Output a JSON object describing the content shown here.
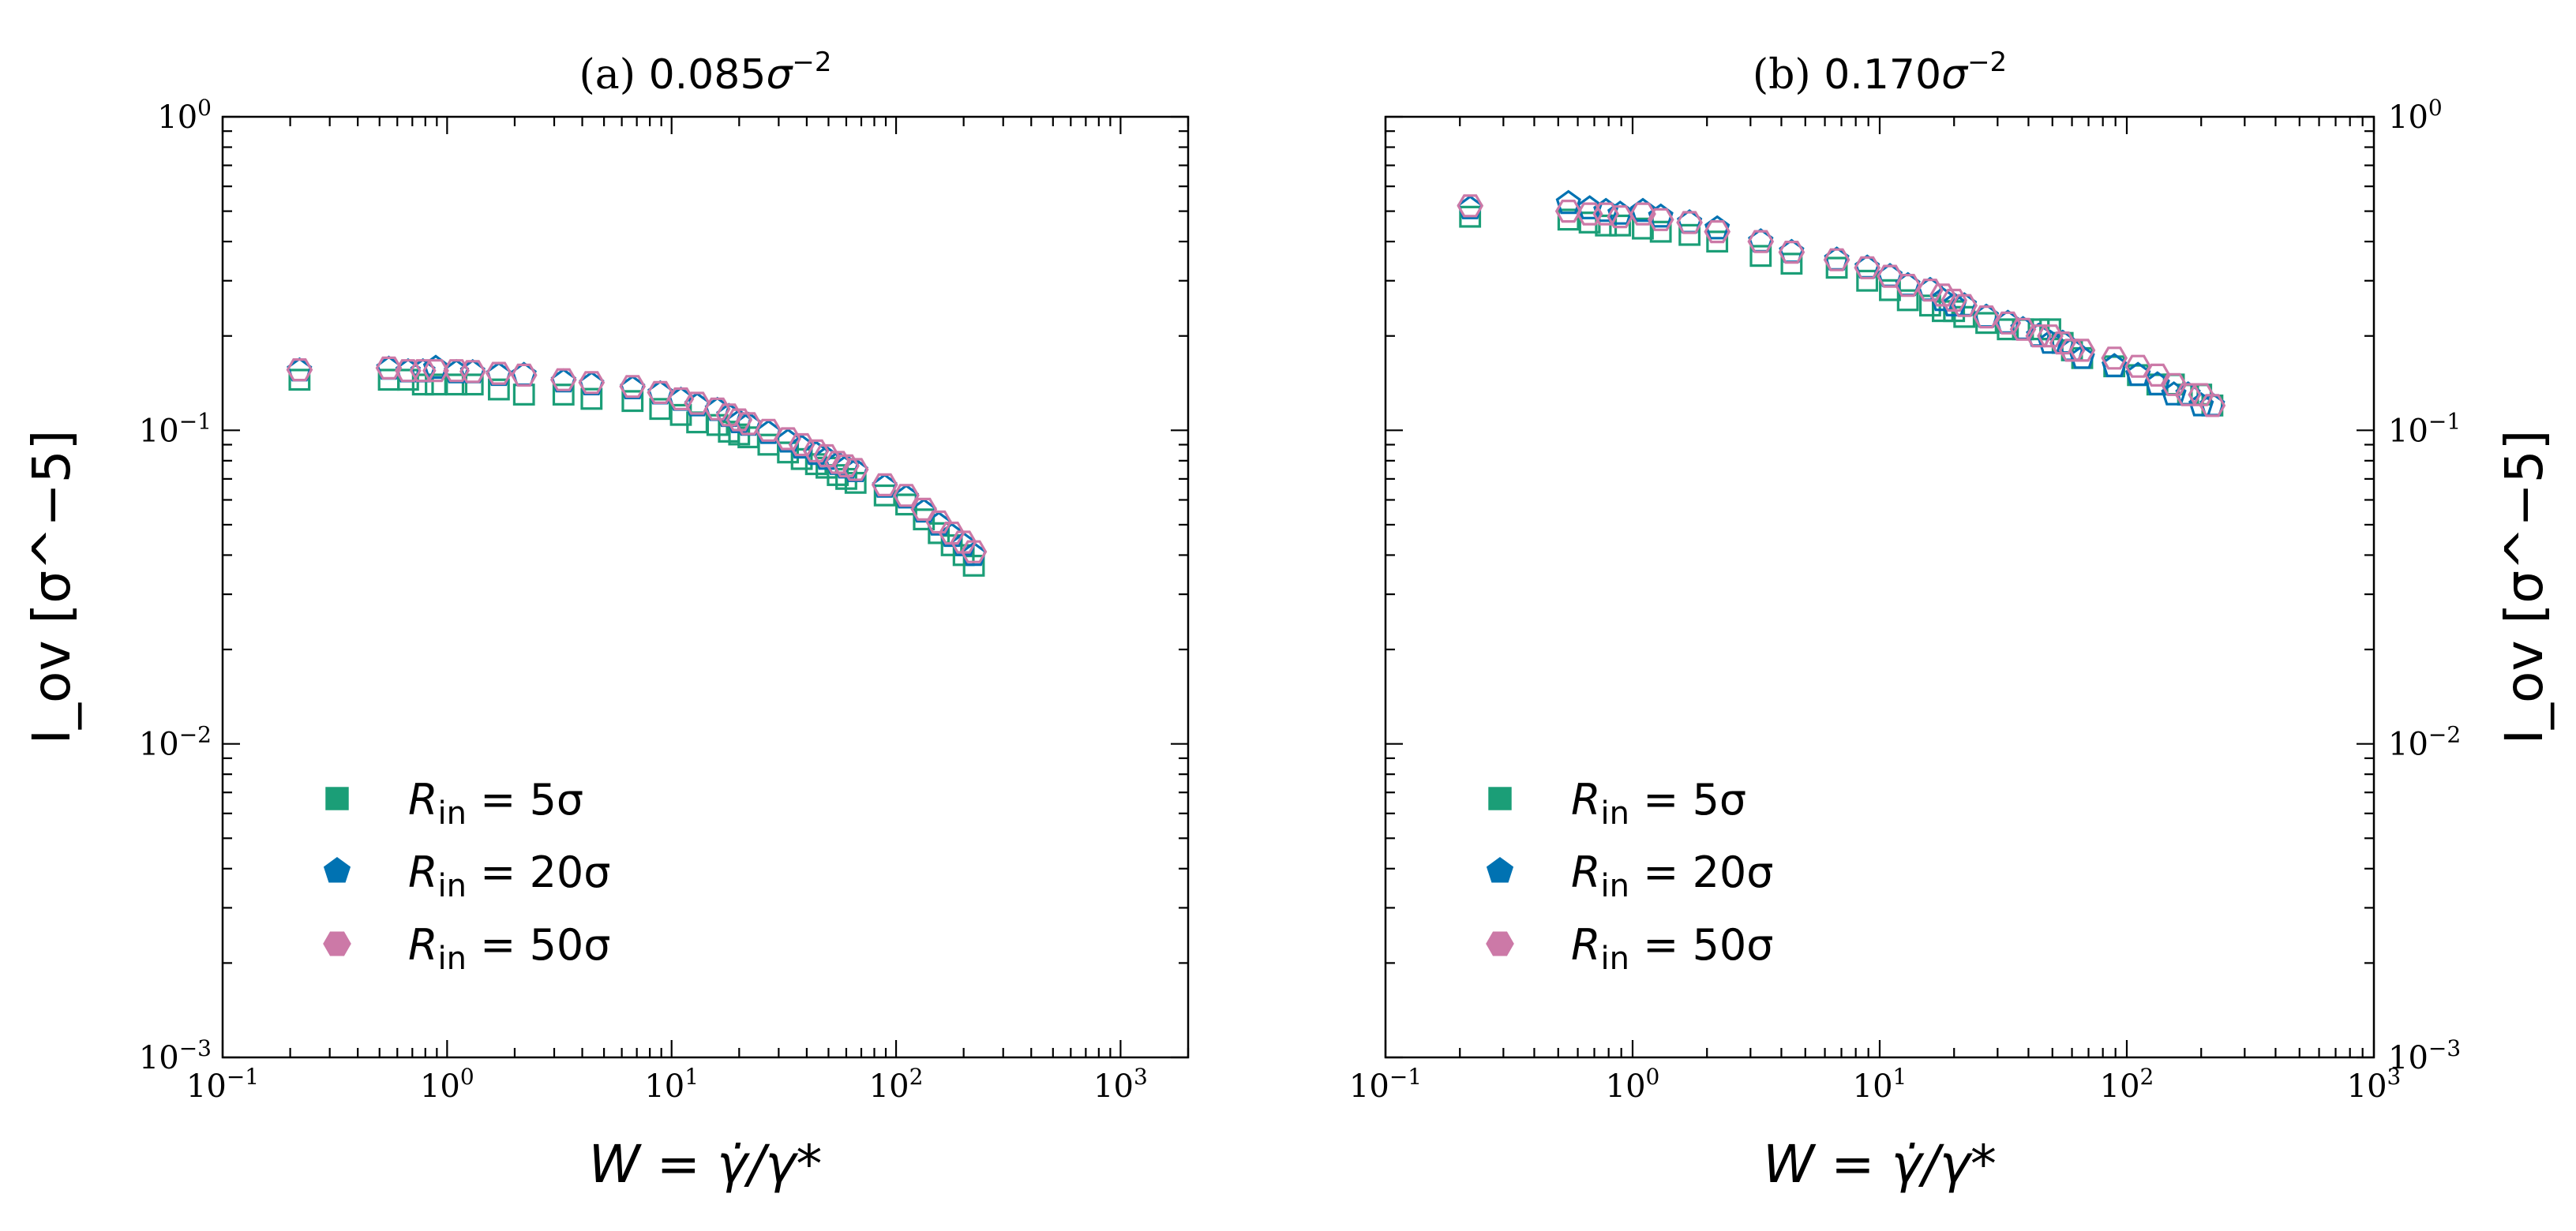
{
  "chart_data": [
    {
      "type": "scatter",
      "title_prefix": "(a)",
      "title_value": "0.085",
      "title_unit_base": "σ",
      "title_unit_exp": "−2",
      "xlabel": "W = γ̇/γ*",
      "ylabel": "I_ov [σ^−5]",
      "x_scale": "log",
      "y_scale": "log",
      "xlim": [
        0.1,
        2000
      ],
      "ylim": [
        0.001,
        1
      ],
      "ylabel_side": "left",
      "x_ticks": [
        {
          "base": "10",
          "exp": "−1",
          "value": 0.1
        },
        {
          "base": "10",
          "exp": "0",
          "value": 1
        },
        {
          "base": "10",
          "exp": "1",
          "value": 10
        },
        {
          "base": "10",
          "exp": "2",
          "value": 100
        },
        {
          "base": "10",
          "exp": "3",
          "value": 1000
        }
      ],
      "y_ticks": [
        {
          "base": "10",
          "exp": "−3",
          "value": 0.001
        },
        {
          "base": "10",
          "exp": "−2",
          "value": 0.01
        },
        {
          "base": "10",
          "exp": "−1",
          "value": 0.1
        },
        {
          "base": "10",
          "exp": "0",
          "value": 1
        }
      ],
      "legend": {
        "placement": "lower-left"
      },
      "series": [
        {
          "name": "R_in = 5σ",
          "label_main": "R",
          "label_sub": "in",
          "label_rest": " = 5σ",
          "marker": "square",
          "color": "#1b9e77",
          "x": [
            0.22,
            0.55,
            0.67,
            0.78,
            0.89,
            1.1,
            1.3,
            1.7,
            2.2,
            3.3,
            4.4,
            6.7,
            8.9,
            11,
            13,
            16,
            18,
            20,
            22,
            27,
            33,
            38,
            44,
            49,
            55,
            60,
            66,
            89,
            111,
            133,
            155,
            177,
            200,
            222
          ],
          "y": [
            0.145,
            0.145,
            0.145,
            0.14,
            0.14,
            0.14,
            0.14,
            0.135,
            0.13,
            0.13,
            0.126,
            0.124,
            0.117,
            0.112,
            0.106,
            0.104,
            0.099,
            0.097,
            0.095,
            0.09,
            0.085,
            0.081,
            0.078,
            0.076,
            0.072,
            0.07,
            0.068,
            0.062,
            0.058,
            0.052,
            0.047,
            0.043,
            0.04,
            0.037
          ]
        },
        {
          "name": "R_in = 20σ",
          "label_main": "R",
          "label_sub": "in",
          "label_rest": " = 20σ",
          "marker": "pentagon",
          "color": "#0072b2",
          "x": [
            0.22,
            0.55,
            0.67,
            0.78,
            0.89,
            1.1,
            1.3,
            1.7,
            2.2,
            3.3,
            4.4,
            6.7,
            8.9,
            11,
            13,
            16,
            18,
            20,
            22,
            27,
            33,
            38,
            44,
            49,
            55,
            60,
            66,
            89,
            111,
            133,
            155,
            177,
            200,
            222
          ],
          "y": [
            0.155,
            0.157,
            0.154,
            0.154,
            0.158,
            0.153,
            0.153,
            0.15,
            0.15,
            0.143,
            0.14,
            0.136,
            0.131,
            0.125,
            0.12,
            0.116,
            0.111,
            0.106,
            0.104,
            0.098,
            0.092,
            0.088,
            0.084,
            0.081,
            0.078,
            0.076,
            0.074,
            0.066,
            0.061,
            0.055,
            0.05,
            0.046,
            0.043,
            0.04
          ]
        },
        {
          "name": "R_in = 50σ",
          "label_main": "R",
          "label_sub": "in",
          "label_rest": " = 50σ",
          "marker": "hexagon",
          "color": "#cc79a7",
          "x": [
            0.22,
            0.55,
            0.67,
            0.78,
            0.89,
            1.1,
            1.3,
            1.7,
            2.2,
            3.3,
            4.4,
            6.7,
            8.9,
            11,
            13,
            16,
            18,
            20,
            22,
            27,
            33,
            38,
            44,
            49,
            55,
            60,
            66,
            89,
            111,
            133,
            155,
            177,
            200,
            222
          ],
          "y": [
            0.156,
            0.158,
            0.155,
            0.155,
            0.155,
            0.155,
            0.154,
            0.152,
            0.15,
            0.145,
            0.142,
            0.138,
            0.132,
            0.126,
            0.122,
            0.117,
            0.112,
            0.108,
            0.105,
            0.1,
            0.094,
            0.09,
            0.086,
            0.083,
            0.079,
            0.077,
            0.075,
            0.067,
            0.062,
            0.056,
            0.051,
            0.047,
            0.044,
            0.041
          ]
        }
      ]
    },
    {
      "type": "scatter",
      "title_prefix": "(b)",
      "title_value": "0.170",
      "title_unit_base": "σ",
      "title_unit_exp": "−2",
      "xlabel": "W = γ̇/γ*",
      "ylabel": "I_ov [σ^−5]",
      "x_scale": "log",
      "y_scale": "log",
      "xlim": [
        0.1,
        1000
      ],
      "ylim": [
        0.001,
        1
      ],
      "ylabel_side": "right",
      "x_ticks": [
        {
          "base": "10",
          "exp": "−1",
          "value": 0.1
        },
        {
          "base": "10",
          "exp": "0",
          "value": 1
        },
        {
          "base": "10",
          "exp": "1",
          "value": 10
        },
        {
          "base": "10",
          "exp": "2",
          "value": 100
        },
        {
          "base": "10",
          "exp": "3",
          "value": 1000
        }
      ],
      "y_ticks": [
        {
          "base": "10",
          "exp": "−3",
          "value": 0.001
        },
        {
          "base": "10",
          "exp": "−2",
          "value": 0.01
        },
        {
          "base": "10",
          "exp": "−1",
          "value": 0.1
        },
        {
          "base": "10",
          "exp": "0",
          "value": 1
        }
      ],
      "legend": {
        "placement": "lower-left"
      },
      "series": [
        {
          "name": "R_in = 5σ",
          "label_main": "R",
          "label_sub": "in",
          "label_rest": " = 5σ",
          "marker": "square",
          "color": "#1b9e77",
          "x": [
            0.22,
            0.55,
            0.67,
            0.78,
            0.89,
            1.1,
            1.3,
            1.7,
            2.2,
            3.3,
            4.4,
            6.7,
            8.9,
            11,
            13,
            16,
            18,
            20,
            22,
            27,
            33,
            38,
            44,
            49,
            55,
            60,
            66,
            89,
            111,
            133,
            155,
            177,
            200,
            222
          ],
          "y": [
            0.48,
            0.47,
            0.46,
            0.45,
            0.45,
            0.44,
            0.43,
            0.42,
            0.4,
            0.36,
            0.34,
            0.33,
            0.3,
            0.28,
            0.26,
            0.25,
            0.24,
            0.24,
            0.23,
            0.22,
            0.21,
            0.21,
            0.21,
            0.21,
            0.19,
            0.18,
            0.17,
            0.16,
            0.15,
            0.14,
            0.14,
            0.13,
            0.13,
            0.12
          ]
        },
        {
          "name": "R_in = 20σ",
          "label_main": "R",
          "label_sub": "in",
          "label_rest": " = 20σ",
          "marker": "pentagon",
          "color": "#0072b2",
          "x": [
            0.22,
            0.55,
            0.67,
            0.78,
            0.89,
            1.1,
            1.3,
            1.7,
            2.2,
            3.3,
            4.4,
            6.7,
            8.9,
            11,
            13,
            16,
            18,
            20,
            22,
            27,
            33,
            38,
            44,
            49,
            55,
            60,
            66,
            89,
            111,
            133,
            155,
            177,
            200,
            222
          ],
          "y": [
            0.51,
            0.53,
            0.51,
            0.5,
            0.49,
            0.5,
            0.48,
            0.46,
            0.44,
            0.4,
            0.37,
            0.35,
            0.33,
            0.31,
            0.29,
            0.28,
            0.26,
            0.25,
            0.25,
            0.23,
            0.22,
            0.21,
            0.2,
            0.19,
            0.19,
            0.18,
            0.17,
            0.16,
            0.15,
            0.14,
            0.13,
            0.13,
            0.12,
            0.12
          ]
        },
        {
          "name": "R_in = 50σ",
          "label_main": "R",
          "label_sub": "in",
          "label_rest": " = 50σ",
          "marker": "hexagon",
          "color": "#cc79a7",
          "x": [
            0.22,
            0.55,
            0.67,
            0.78,
            0.89,
            1.1,
            1.3,
            1.7,
            2.2,
            3.3,
            4.4,
            6.7,
            8.9,
            11,
            13,
            16,
            18,
            20,
            22,
            27,
            33,
            38,
            44,
            49,
            55,
            60,
            66,
            89,
            111,
            133,
            155,
            177,
            200,
            222
          ],
          "y": [
            0.52,
            0.5,
            0.49,
            0.49,
            0.48,
            0.49,
            0.47,
            0.46,
            0.43,
            0.4,
            0.37,
            0.35,
            0.33,
            0.31,
            0.29,
            0.28,
            0.27,
            0.26,
            0.25,
            0.23,
            0.22,
            0.21,
            0.2,
            0.2,
            0.19,
            0.18,
            0.18,
            0.17,
            0.16,
            0.15,
            0.14,
            0.13,
            0.13,
            0.12
          ]
        }
      ]
    }
  ]
}
